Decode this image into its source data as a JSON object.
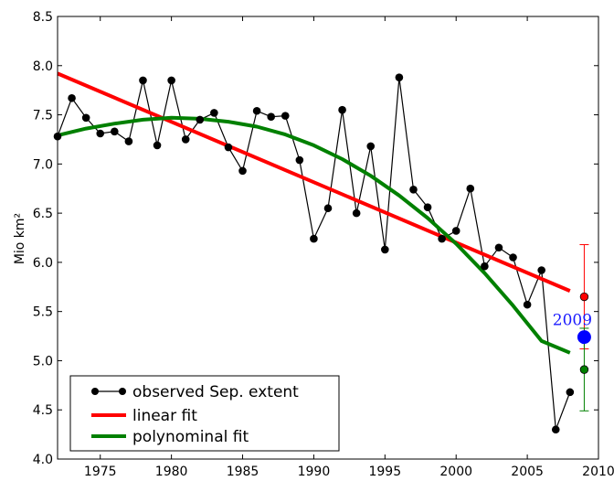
{
  "chart_data": {
    "type": "line",
    "ylabel": "Mio km²",
    "xlim": [
      1972,
      2010
    ],
    "ylim": [
      4.0,
      8.5
    ],
    "x_ticks": [
      1975,
      1980,
      1985,
      1990,
      1995,
      2000,
      2005,
      2010
    ],
    "y_ticks": [
      4.0,
      4.5,
      5.0,
      5.5,
      6.0,
      6.5,
      7.0,
      7.5,
      8.0,
      8.5
    ],
    "legend_position": "bottom-left",
    "series": [
      {
        "name": "observed Sep. extent",
        "color": "#000000",
        "marker": "circle",
        "x": [
          1972,
          1973,
          1974,
          1975,
          1976,
          1977,
          1978,
          1979,
          1980,
          1981,
          1982,
          1983,
          1984,
          1985,
          1986,
          1987,
          1988,
          1989,
          1990,
          1991,
          1992,
          1993,
          1994,
          1995,
          1996,
          1997,
          1998,
          1999,
          2000,
          2001,
          2002,
          2003,
          2004,
          2005,
          2006,
          2007,
          2008
        ],
        "y": [
          7.28,
          7.67,
          7.47,
          7.31,
          7.33,
          7.23,
          7.85,
          7.19,
          7.85,
          7.25,
          7.45,
          7.52,
          7.17,
          6.93,
          7.54,
          7.48,
          7.49,
          7.04,
          6.24,
          6.55,
          7.55,
          6.5,
          7.18,
          6.13,
          7.88,
          6.74,
          6.56,
          6.24,
          6.32,
          6.75,
          5.96,
          6.15,
          6.05,
          5.57,
          5.92,
          4.3,
          4.68
        ]
      },
      {
        "name": "linear fit",
        "color": "#ff0000",
        "x": [
          1972,
          2008
        ],
        "y": [
          7.92,
          5.71
        ]
      },
      {
        "name": "polynominal fit",
        "color": "#008000",
        "x": [
          1972,
          1974,
          1976,
          1978,
          1980,
          1982,
          1984,
          1986,
          1988,
          1990,
          1992,
          1994,
          1996,
          1998,
          2000,
          2002,
          2004,
          2006,
          2008
        ],
        "y": [
          7.29,
          7.36,
          7.41,
          7.45,
          7.47,
          7.46,
          7.43,
          7.38,
          7.3,
          7.19,
          7.05,
          6.88,
          6.68,
          6.45,
          6.19,
          5.89,
          5.56,
          5.2,
          5.08
        ]
      }
    ],
    "predictions": [
      {
        "x": 2009,
        "y": 5.65,
        "low": 5.12,
        "high": 6.18,
        "color": "#ff0000"
      },
      {
        "x": 2009,
        "y": 4.91,
        "low": 4.49,
        "high": 5.33,
        "color": "#008000"
      }
    ],
    "highlight": {
      "x": 2009,
      "y": 5.24,
      "label": "2009",
      "color": "#0000ff"
    }
  }
}
